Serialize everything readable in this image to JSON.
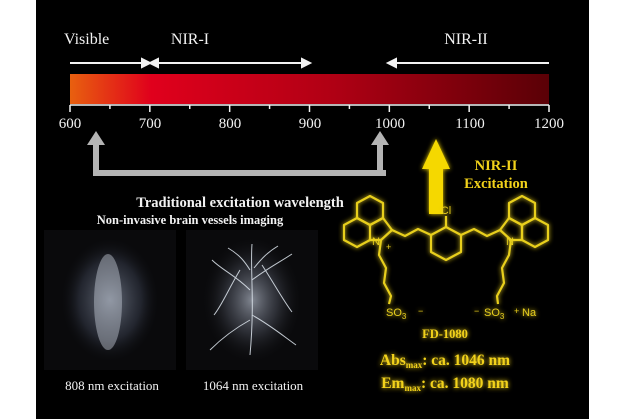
{
  "spectrum": {
    "regions": [
      "Visible",
      "NIR-I",
      "NIR-II"
    ],
    "axis_ticks": [
      "600",
      "700",
      "800",
      "900",
      "1000",
      "1100",
      "1200"
    ],
    "axis_range_nm": [
      600,
      1200
    ],
    "gradient_colors": [
      "#e8600f",
      "#e0001c",
      "#a50012",
      "#5a0006"
    ]
  },
  "traditional_label": "Traditional excitation wavelength",
  "nir2_label": {
    "line1": "NIR-II",
    "line2": "Excitation"
  },
  "imaging": {
    "title": "Non-invasive brain vessels imaging",
    "captions": [
      "808 nm excitation",
      "1064 nm excitation"
    ]
  },
  "molecule": {
    "name": "FD-1080",
    "atoms": {
      "cl": "Cl",
      "n": "N",
      "so3": "SO",
      "sub3": "3",
      "na": "Na",
      "plus": "+",
      "minus": "−"
    },
    "abs": {
      "main": "Abs",
      "sub": "max",
      "value": ": ca. 1046 nm"
    },
    "em": {
      "main": "Em",
      "sub": "max",
      "value": ": ca. 1080 nm"
    }
  },
  "colors": {
    "background": "#000000",
    "accent": "#f2d21a",
    "gray_arrow": "#b4b4b4"
  }
}
